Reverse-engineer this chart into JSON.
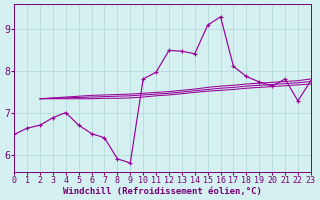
{
  "background_color": "#d4f0f0",
  "line_color": "#990099",
  "grid_color": "#b8dada",
  "xlabel": "Windchill (Refroidissement éolien,°C)",
  "xlabel_fontsize": 6.5,
  "tick_fontsize": 6.0,
  "xlim": [
    0,
    23
  ],
  "ylim": [
    5.6,
    9.6
  ],
  "yticks": [
    6,
    7,
    8,
    9
  ],
  "xticks": [
    0,
    1,
    2,
    3,
    4,
    5,
    6,
    7,
    8,
    9,
    10,
    11,
    12,
    13,
    14,
    15,
    16,
    17,
    18,
    19,
    20,
    21,
    22,
    23
  ],
  "main_x": [
    0,
    1,
    2,
    3,
    4,
    5,
    6,
    7,
    8,
    9,
    10,
    11,
    12,
    13,
    14,
    15,
    16,
    17,
    18,
    19,
    20,
    21,
    22,
    23
  ],
  "main_y": [
    6.5,
    6.65,
    6.72,
    6.9,
    7.02,
    6.72,
    6.52,
    6.42,
    5.92,
    5.82,
    7.82,
    7.98,
    8.5,
    8.48,
    8.42,
    9.1,
    9.3,
    8.12,
    7.88,
    7.75,
    7.65,
    7.82,
    7.3,
    7.78
  ],
  "line2_x": [
    2,
    3,
    4,
    5,
    6,
    7,
    8,
    9,
    10,
    11,
    12,
    13,
    14,
    15,
    16,
    17,
    18,
    19,
    20,
    21,
    22,
    23
  ],
  "line2_y": [
    7.35,
    7.37,
    7.39,
    7.41,
    7.43,
    7.44,
    7.45,
    7.46,
    7.48,
    7.5,
    7.52,
    7.55,
    7.58,
    7.62,
    7.65,
    7.67,
    7.7,
    7.72,
    7.74,
    7.76,
    7.78,
    7.82
  ],
  "line3_x": [
    2,
    3,
    4,
    5,
    6,
    7,
    8,
    9,
    10,
    11,
    12,
    13,
    14,
    15,
    16,
    17,
    18,
    19,
    20,
    21,
    22,
    23
  ],
  "line3_y": [
    7.35,
    7.36,
    7.37,
    7.38,
    7.39,
    7.4,
    7.41,
    7.42,
    7.44,
    7.46,
    7.48,
    7.51,
    7.54,
    7.57,
    7.6,
    7.62,
    7.65,
    7.67,
    7.69,
    7.71,
    7.73,
    7.76
  ],
  "line4_x": [
    2,
    3,
    4,
    5,
    6,
    7,
    8,
    9,
    10,
    11,
    12,
    13,
    14,
    15,
    16,
    17,
    18,
    19,
    20,
    21,
    22,
    23
  ],
  "line4_y": [
    7.35,
    7.35,
    7.35,
    7.35,
    7.35,
    7.36,
    7.36,
    7.37,
    7.39,
    7.42,
    7.44,
    7.47,
    7.5,
    7.53,
    7.55,
    7.57,
    7.6,
    7.62,
    7.64,
    7.66,
    7.68,
    7.7
  ]
}
